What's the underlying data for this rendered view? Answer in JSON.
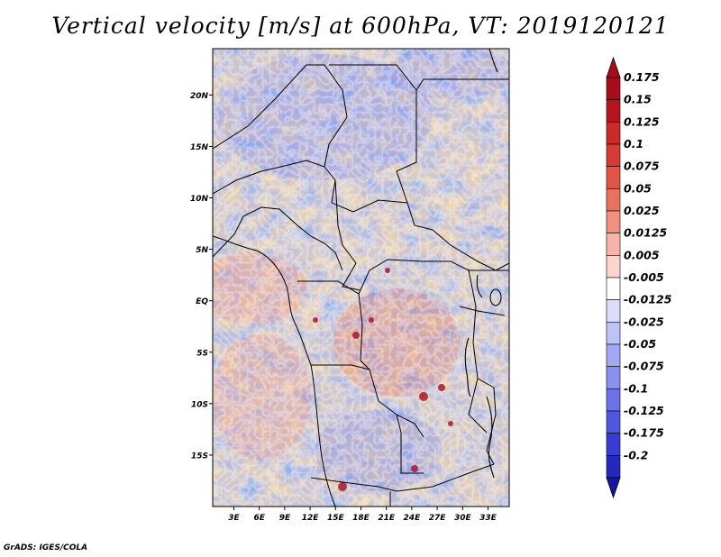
{
  "title": "Vertical velocity [m/s] at 600hPa, VT: 2019120121",
  "credit": "GrADS: IGES/COLA",
  "map": {
    "lat_labels": [
      {
        "text": "20N",
        "lat": 20
      },
      {
        "text": "15N",
        "lat": 15
      },
      {
        "text": "10N",
        "lat": 10
      },
      {
        "text": "5N",
        "lat": 5
      },
      {
        "text": "EQ",
        "lat": 0
      },
      {
        "text": "5S",
        "lat": -5
      },
      {
        "text": "10S",
        "lat": -10
      },
      {
        "text": "15S",
        "lat": -15
      }
    ],
    "lon_labels": [
      {
        "text": "3E",
        "lon": 3
      },
      {
        "text": "6E",
        "lon": 6
      },
      {
        "text": "9E",
        "lon": 9
      },
      {
        "text": "12E",
        "lon": 12
      },
      {
        "text": "15E",
        "lon": 15
      },
      {
        "text": "18E",
        "lon": 18
      },
      {
        "text": "21E",
        "lon": 21
      },
      {
        "text": "24E",
        "lon": 24
      },
      {
        "text": "27E",
        "lon": 27
      },
      {
        "text": "30E",
        "lon": 30
      },
      {
        "text": "33E",
        "lon": 33
      }
    ],
    "lon_range": [
      0.5,
      35.5
    ],
    "lat_range": [
      -20,
      24.5
    ]
  },
  "colorbar": {
    "labels": [
      "0.175",
      "0.15",
      "0.125",
      "0.1",
      "0.075",
      "0.05",
      "0.025",
      "0.0125",
      "0.005",
      "-0.005",
      "-0.0125",
      "-0.025",
      "-0.05",
      "-0.075",
      "-0.1",
      "-0.125",
      "-0.175",
      "-0.2"
    ],
    "colors": [
      "#a80d1b",
      "#b8141f",
      "#c92a2a",
      "#d63b35",
      "#e05546",
      "#e8725d",
      "#f09080",
      "#f5b4a6",
      "#fad5cc",
      "#ffffff",
      "#d9dcfa",
      "#bfc3f7",
      "#a2a8f3",
      "#8a90ee",
      "#6c73e6",
      "#4f57dc",
      "#363ed0",
      "#2329bc",
      "#14189f"
    ],
    "top_color": "#a80d1b",
    "bottom_color": "#14189f"
  }
}
